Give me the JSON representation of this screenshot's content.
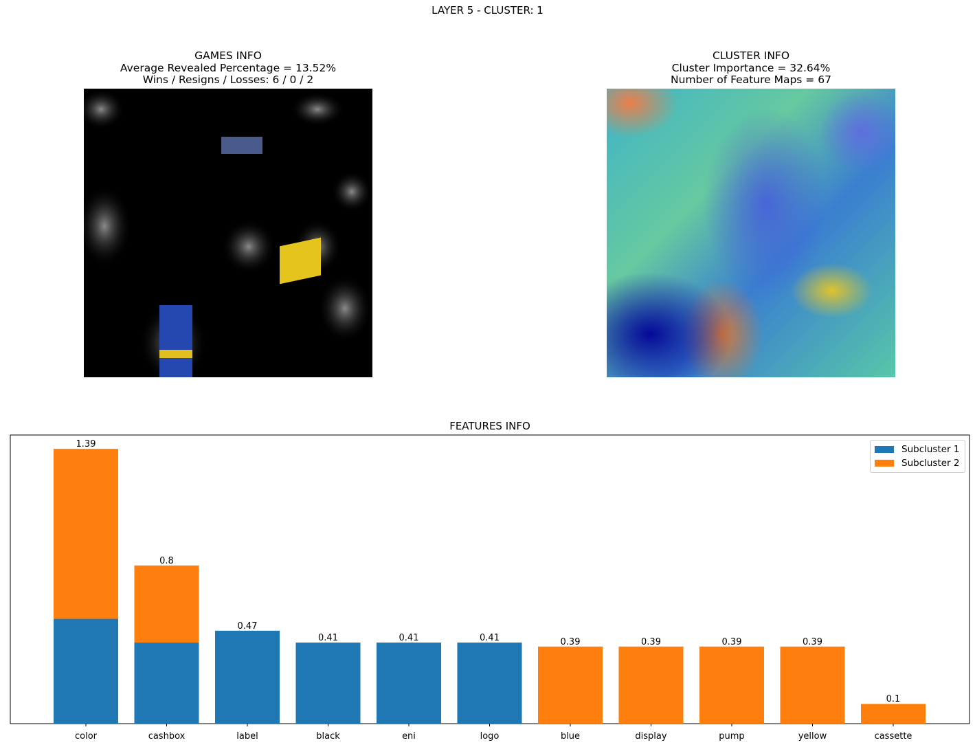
{
  "suptitle": "LAYER 5 - CLUSTER: 1",
  "games_panel": {
    "title": "GAMES INFO",
    "line1": "Average Revealed Percentage = 13.52%",
    "line2": "Wins / Resigns / Losses: 6 / 0 / 2"
  },
  "cluster_panel": {
    "title": "CLUSTER INFO",
    "line1": "Cluster Importance = 32.64%",
    "line2": "Number of Feature Maps = 67"
  },
  "colors": {
    "subcluster1": "#1f77b4",
    "subcluster2": "#ff7f0e"
  },
  "chart_data": {
    "type": "bar",
    "title": "FEATURES INFO",
    "xlabel": "",
    "ylabel": "",
    "stacked": true,
    "categories": [
      "color",
      "cashbox",
      "label",
      "black",
      "eni",
      "logo",
      "blue",
      "display",
      "pump",
      "yellow",
      "cassette"
    ],
    "series": [
      {
        "name": "Subcluster 1",
        "values": [
          0.53,
          0.41,
          0.47,
          0.41,
          0.41,
          0.41,
          0,
          0,
          0,
          0,
          0
        ]
      },
      {
        "name": "Subcluster 2",
        "values": [
          0.86,
          0.39,
          0,
          0,
          0,
          0,
          0.39,
          0.39,
          0.39,
          0.39,
          0.1
        ]
      }
    ],
    "totals": [
      "1.39",
      "0.8",
      "0.47",
      "0.41",
      "0.41",
      "0.41",
      "0.39",
      "0.39",
      "0.39",
      "0.39",
      "0.1"
    ],
    "ylim": [
      0,
      1.46
    ],
    "y_ticks_visible": false,
    "grid": false,
    "legend": "top-right"
  }
}
